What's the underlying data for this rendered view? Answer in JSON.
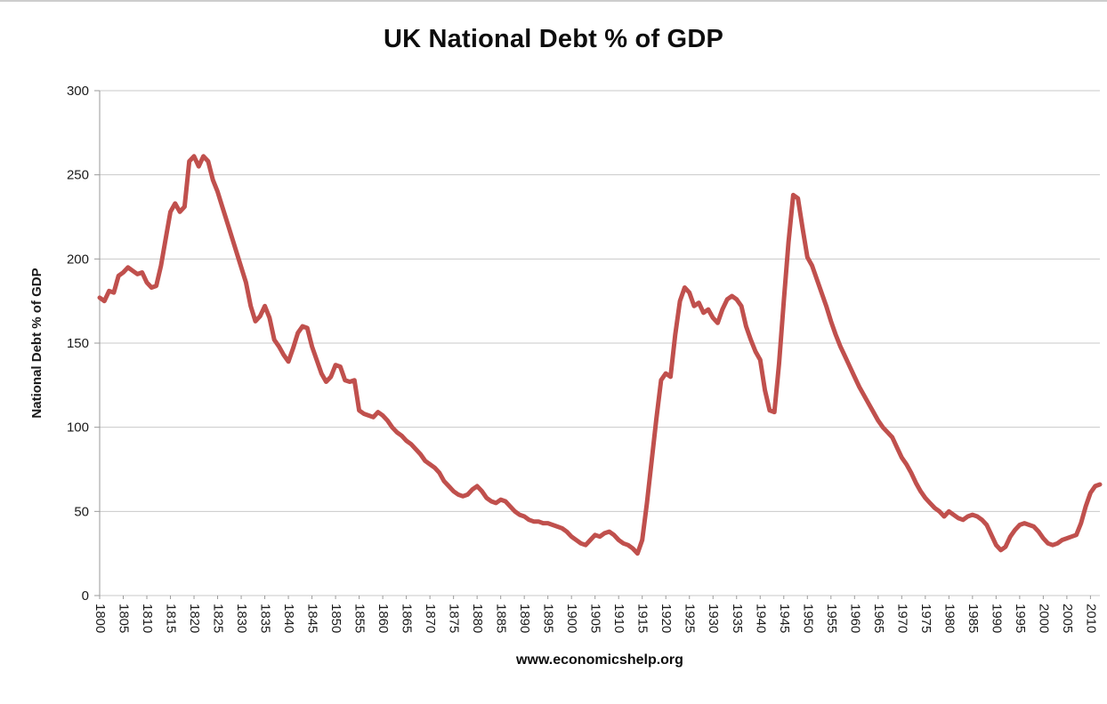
{
  "page": {
    "background": "#ffffff"
  },
  "chart_data": {
    "type": "line",
    "title": "UK National Debt % of GDP",
    "ylabel": "National Debt % of GDP",
    "xlabel": "",
    "footer": "www.economicshelp.org",
    "ylim": [
      0,
      300
    ],
    "y_tick_step": 50,
    "y_tick_labels": [
      "0",
      "50",
      "100",
      "150",
      "200",
      "250",
      "300"
    ],
    "x_start": 1800,
    "x_end": 2012,
    "x_tick_step": 5,
    "x_tick_end": 2010,
    "grid": true,
    "legend": "none",
    "line_color": "#c0504d",
    "gridline_color": "#c9c9c9",
    "axis_color": "#9a9a9a",
    "text_color": "#1a1a1a",
    "series_name": "UK National Debt % of GDP",
    "values": [
      177,
      175,
      181,
      180,
      190,
      192,
      195,
      193,
      191,
      192,
      186,
      183,
      184,
      196,
      212,
      228,
      233,
      228,
      231,
      258,
      261,
      255,
      261,
      258,
      247,
      240,
      231,
      222,
      213,
      204,
      195,
      186,
      172,
      163,
      166,
      172,
      165,
      152,
      148,
      143,
      139,
      147,
      156,
      160,
      159,
      148,
      140,
      132,
      127,
      130,
      137,
      136,
      128,
      127,
      128,
      110,
      108,
      107,
      106,
      109,
      107,
      104,
      100,
      97,
      95,
      92,
      90,
      87,
      84,
      80,
      78,
      76,
      73,
      68,
      65,
      62,
      60,
      59,
      60,
      63,
      65,
      62,
      58,
      56,
      55,
      57,
      56,
      53,
      50,
      48,
      47,
      45,
      44,
      44,
      43,
      43,
      42,
      41,
      40,
      38,
      35,
      33,
      31,
      30,
      33,
      36,
      35,
      37,
      38,
      36,
      33,
      31,
      30,
      28,
      25,
      33,
      55,
      80,
      105,
      128,
      132,
      130,
      155,
      175,
      183,
      180,
      172,
      174,
      168,
      170,
      165,
      162,
      170,
      176,
      178,
      176,
      172,
      160,
      152,
      145,
      140,
      122,
      110,
      109,
      138,
      175,
      210,
      238,
      236,
      218,
      201,
      196,
      188,
      180,
      172,
      163,
      155,
      148,
      142,
      136,
      130,
      124,
      119,
      114,
      109,
      104,
      100,
      97,
      94,
      88,
      82,
      78,
      73,
      67,
      62,
      58,
      55,
      52,
      50,
      47,
      50,
      48,
      46,
      45,
      47,
      48,
      47,
      45,
      42,
      36,
      30,
      27,
      29,
      35,
      39,
      42,
      43,
      42,
      41,
      38,
      34,
      31,
      30,
      31,
      33,
      34,
      35,
      36,
      43,
      53,
      61,
      65,
      66
    ]
  }
}
